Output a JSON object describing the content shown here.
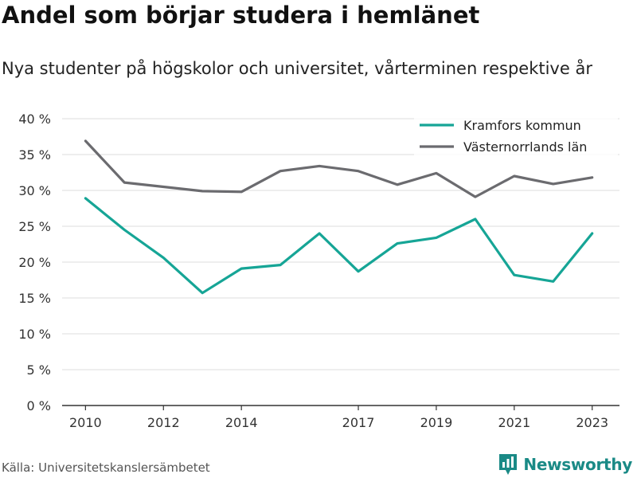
{
  "title": "Andel som börjar studera i hemlänet",
  "subtitle": "Nya studenter på högskolor och universitet, vårterminen respektive år",
  "source": "Källa: Universitetskanslersämbetet",
  "brand": {
    "name": "Newsworthy",
    "icon": "newsworthy-logo-icon",
    "color": "#1a8a86"
  },
  "chart_data": {
    "type": "line",
    "x": [
      2010,
      2011,
      2012,
      2013,
      2014,
      2015,
      2016,
      2017,
      2018,
      2019,
      2020,
      2021,
      2022,
      2023
    ],
    "series": [
      {
        "name": "Kramfors kommun",
        "color": "#16a596",
        "values": [
          28.9,
          24.5,
          20.6,
          15.7,
          19.1,
          19.6,
          24.0,
          18.7,
          22.6,
          23.4,
          26.0,
          18.2,
          17.3,
          24.0
        ]
      },
      {
        "name": "Västernorrlands län",
        "color": "#6b6b6f",
        "values": [
          36.9,
          31.1,
          30.5,
          29.9,
          29.8,
          32.7,
          33.4,
          32.7,
          30.8,
          32.4,
          29.1,
          32.0,
          30.9,
          31.8
        ]
      }
    ],
    "xticks": [
      2010,
      2012,
      2014,
      2017,
      2019,
      2021,
      2023
    ],
    "xtick_labels": [
      "2010",
      "2012",
      "2014",
      "2017",
      "2019",
      "2021",
      "2023"
    ],
    "yticks": [
      0,
      5,
      10,
      15,
      20,
      25,
      30,
      35,
      40
    ],
    "ytick_labels": [
      "0 %",
      "5 %",
      "10 %",
      "15 %",
      "20 %",
      "25 %",
      "30 %",
      "35 %",
      "40 %"
    ],
    "xlim": [
      2009.4,
      2023.7
    ],
    "ylim": [
      0,
      40
    ],
    "xlabel": "",
    "ylabel": "",
    "grid": true,
    "legend_position": "top-right"
  }
}
